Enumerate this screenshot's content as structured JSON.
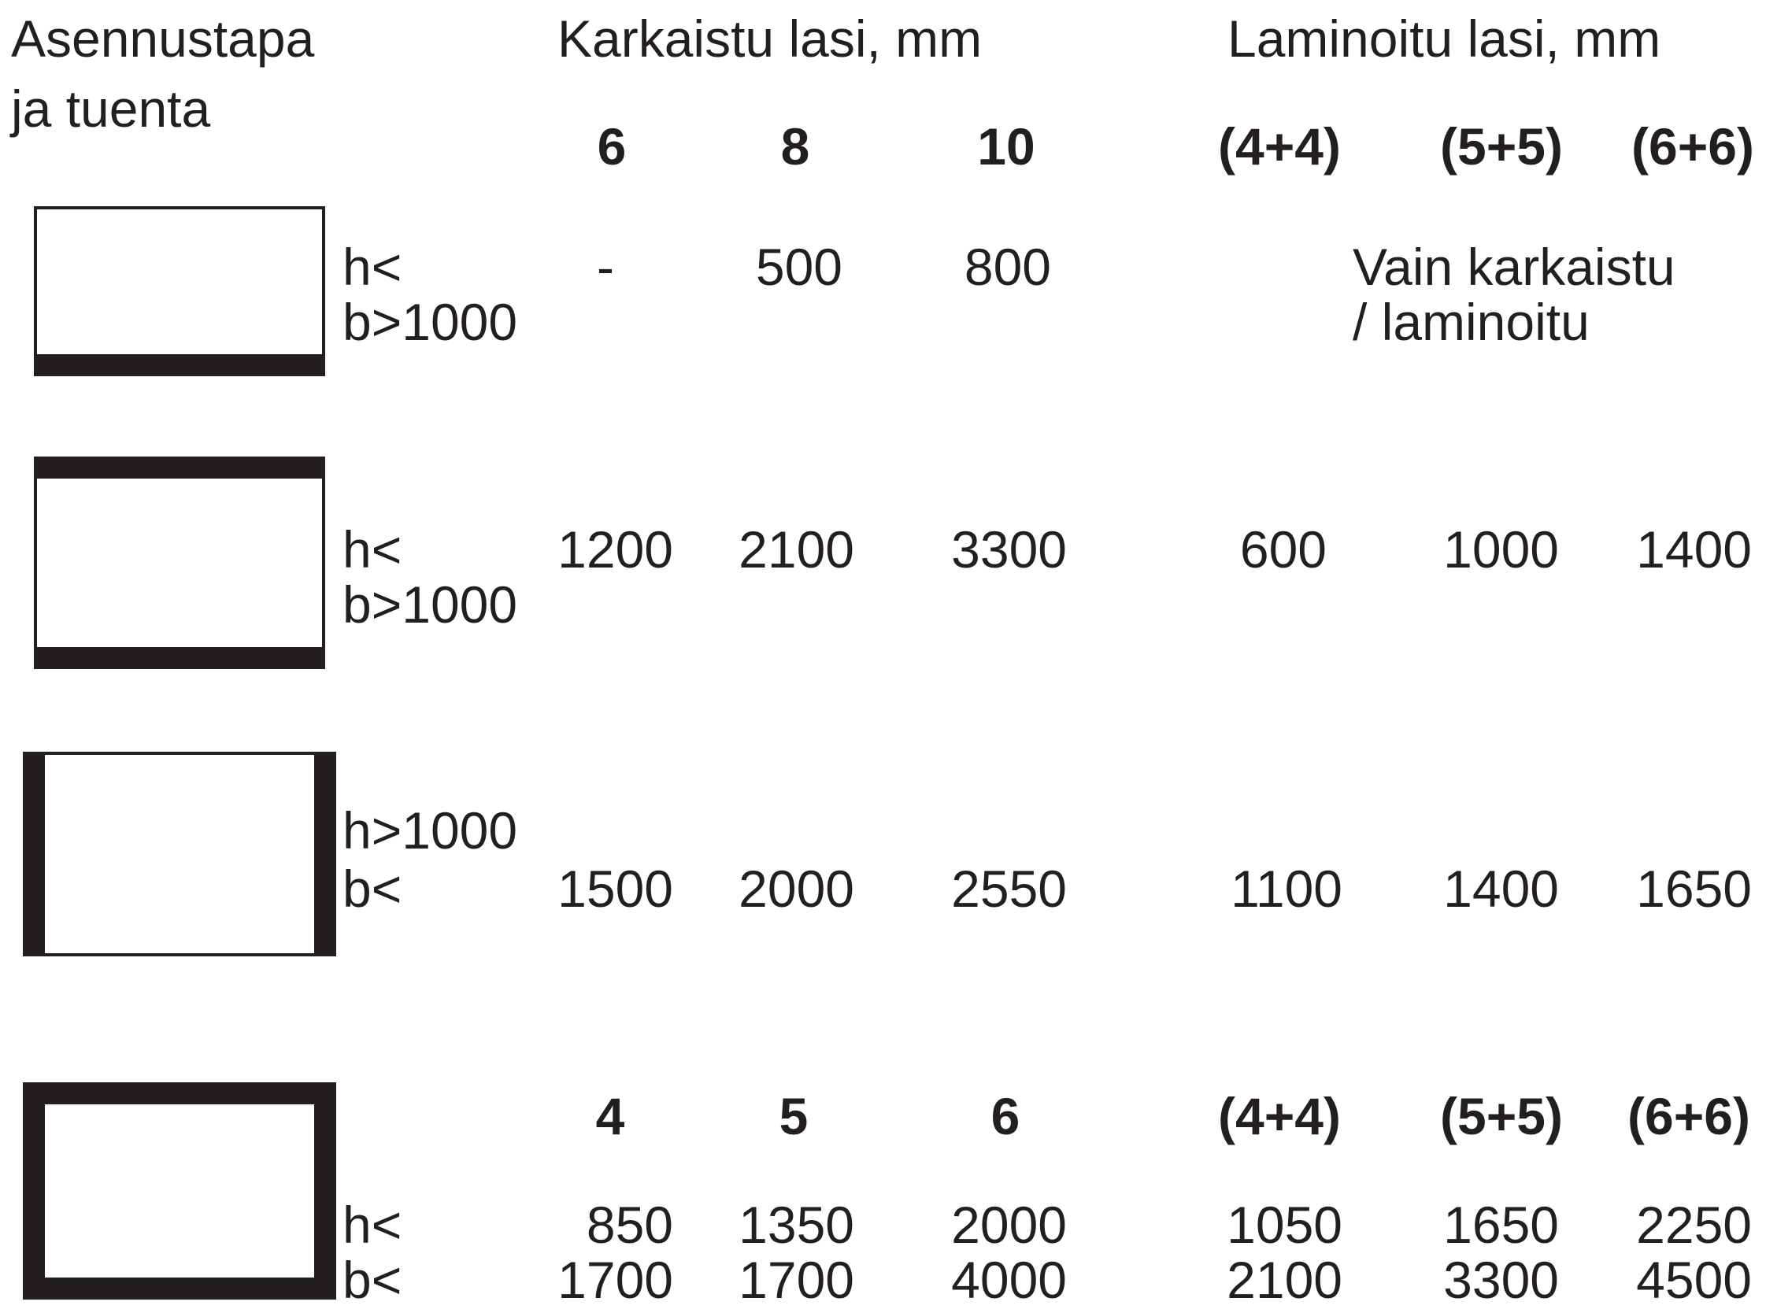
{
  "header": {
    "mounting_line1": "Asennustapa",
    "mounting_line2": "ja tuenta",
    "tempered": "Karkaistu lasi, mm",
    "laminated": "Laminoitu lasi, mm"
  },
  "thickness_headers": {
    "t6": "6",
    "t8": "8",
    "t10": "10",
    "l44": "(4+4)",
    "l55": "(5+5)",
    "l66": "(6+6)"
  },
  "rows": [
    {
      "support_icon": "bottom-edge-support-icon",
      "cond1": "h<",
      "cond2": "b>1000",
      "t6": "-",
      "t8": "500",
      "t10": "800",
      "note1": "Vain karkaistu",
      "note2": "/ laminoitu"
    },
    {
      "support_icon": "top-bottom-edge-support-icon",
      "cond1": "h<",
      "cond2": "b>1000",
      "t6": "1200",
      "t8": "2100",
      "t10": "3300",
      "l44": "600",
      "l55": "1000",
      "l66": "1400"
    },
    {
      "support_icon": "left-right-edge-support-icon",
      "cond1": "h>1000",
      "cond2": "b<",
      "t6": "1500",
      "t8": "2000",
      "t10": "2550",
      "l44": "1100",
      "l55": "1400",
      "l66": "1650"
    },
    {
      "support_icon": "all-edges-support-icon",
      "headers": {
        "t1": "4",
        "t2": "5",
        "t3": "6",
        "l44": "(4+4)",
        "l55": "(5+5)",
        "l66": "(6+6)"
      },
      "h_label": "h<",
      "b_label": "b<",
      "h_values": [
        "850",
        "1350",
        "2000",
        "1050",
        "1650",
        "2250"
      ],
      "b_values": [
        "1700",
        "1700",
        "4000",
        "2100",
        "3300",
        "4500"
      ]
    }
  ]
}
